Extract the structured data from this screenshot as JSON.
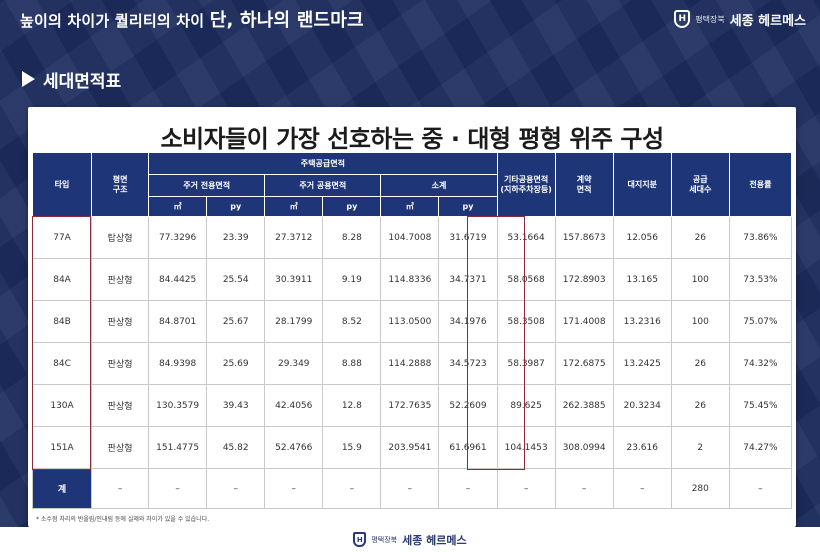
{
  "header": {
    "slogan_main": "높이의 차이가 퀄리티의 차이 ",
    "slogan_emph": "단, 하나의 랜드마크",
    "brand_emblem": "H",
    "brand_sub": "평택장북",
    "brand_name": "세종 헤르메스"
  },
  "section": {
    "title": "세대면적표"
  },
  "table": {
    "title": "소비자들이 가장 선호하는 중 · 대형 평형 위주 구성",
    "headers": {
      "type": "타입",
      "plan": "평면\n구조",
      "supply_area": "주택공급면적",
      "exclusive": "주거 전용면적",
      "common": "주거 공용면적",
      "subtotal": "소계",
      "unit_m2": "㎡",
      "unit_py": "py",
      "other_common": "기타공용면적\n(지하주차장등)",
      "contract": "계약\n면적",
      "land_share": "대지지분",
      "supply_units": "공급\n세대수",
      "ratio": "전용률"
    },
    "rows": [
      {
        "type": "77A",
        "plan": "탑상형",
        "ex_m2": "77.3296",
        "ex_py": "23.39",
        "cm_m2": "27.3712",
        "cm_py": "8.28",
        "sub_m2": "104.7008",
        "sub_py": "31.6719",
        "other": "53.1664",
        "contract": "157.8673",
        "land": "12.056",
        "units": "26",
        "ratio": "73.86%"
      },
      {
        "type": "84A",
        "plan": "판상형",
        "ex_m2": "84.4425",
        "ex_py": "25.54",
        "cm_m2": "30.3911",
        "cm_py": "9.19",
        "sub_m2": "114.8336",
        "sub_py": "34.7371",
        "other": "58.0568",
        "contract": "172.8903",
        "land": "13.165",
        "units": "100",
        "ratio": "73.53%"
      },
      {
        "type": "84B",
        "plan": "판상형",
        "ex_m2": "84.8701",
        "ex_py": "25.67",
        "cm_m2": "28.1799",
        "cm_py": "8.52",
        "sub_m2": "113.0500",
        "sub_py": "34.1976",
        "other": "58.3508",
        "contract": "171.4008",
        "land": "13.2316",
        "units": "100",
        "ratio": "75.07%"
      },
      {
        "type": "84C",
        "plan": "판상형",
        "ex_m2": "84.9398",
        "ex_py": "25.69",
        "cm_m2": "29.349",
        "cm_py": "8.88",
        "sub_m2": "114.2888",
        "sub_py": "34.5723",
        "other": "58.3987",
        "contract": "172.6875",
        "land": "13.2425",
        "units": "26",
        "ratio": "74.32%"
      },
      {
        "type": "130A",
        "plan": "판상형",
        "ex_m2": "130.3579",
        "ex_py": "39.43",
        "cm_m2": "42.4056",
        "cm_py": "12.8",
        "sub_m2": "172.7635",
        "sub_py": "52.2609",
        "other": "89.625",
        "contract": "262.3885",
        "land": "20.3234",
        "units": "26",
        "ratio": "75.45%"
      },
      {
        "type": "151A",
        "plan": "판상형",
        "ex_m2": "151.4775",
        "ex_py": "45.82",
        "cm_m2": "52.4766",
        "cm_py": "15.9",
        "sub_m2": "203.9541",
        "sub_py": "61.6961",
        "other": "104.1453",
        "contract": "308.0994",
        "land": "23.616",
        "units": "2",
        "ratio": "74.27%"
      }
    ],
    "total": {
      "label": "계",
      "dash": "–",
      "units": "280"
    },
    "footnote": "* 소수점 자리의 반올림/인내림 등에 실제와 차이가 있을 수 있습니다."
  },
  "footer": {
    "brand_sub": "평택장북",
    "brand_name": "세종 헤르메스",
    "emblem": "H"
  },
  "colors": {
    "header_navy": "#1e3577",
    "highlight": "#8a2a3a",
    "background": "#1d2d60"
  }
}
